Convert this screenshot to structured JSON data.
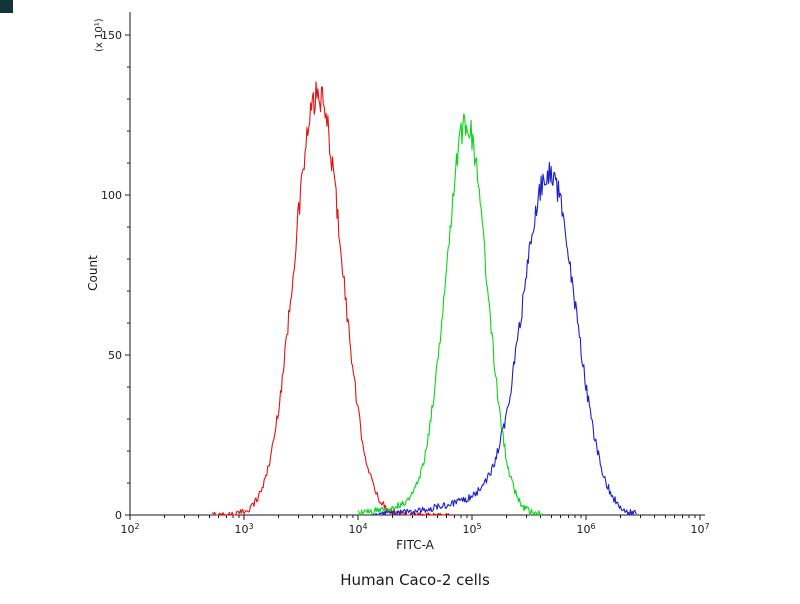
{
  "figure": {
    "background_color": "#ffffff",
    "corner_mark_color": "#14343c"
  },
  "chart_data": {
    "type": "line",
    "chart_kind": "flow-cytometry-histogram",
    "title": "Human Caco-2 cells",
    "xlabel": "FITC-A",
    "ylabel": "Count",
    "y_multiplier_label": "(x 10¹)",
    "x_scale": "log10",
    "x_tick_exponents": [
      2,
      3,
      4,
      5,
      6,
      7
    ],
    "y_ticks": [
      0,
      50,
      100,
      150
    ],
    "ylim": [
      0,
      155
    ],
    "xlim_log10": [
      2,
      7
    ],
    "grid": false,
    "legend": "none",
    "series": [
      {
        "name": "red-peak",
        "color": "#e31313",
        "peak_x": 4500,
        "peak_log10": 3.65,
        "peak_count": 131,
        "sigma_log10": 0.21,
        "range_log10": [
          2.72,
          4.8
        ],
        "components": [
          {
            "amp": 131,
            "mu": 3.65,
            "sigma": 0.21
          }
        ]
      },
      {
        "name": "green-peak",
        "color": "#0bd41b",
        "peak_x": 90000,
        "peak_log10": 4.95,
        "peak_count": 121,
        "sigma_log10": 0.18,
        "range_log10": [
          4.0,
          5.62
        ],
        "components": [
          {
            "amp": 121,
            "mu": 4.95,
            "sigma": 0.18
          },
          {
            "amp": 3,
            "mu": 4.55,
            "sigma": 0.3
          }
        ]
      },
      {
        "name": "blue-peak",
        "color": "#1a20cc",
        "peak_x": 480000,
        "peak_log10": 5.68,
        "peak_count": 105,
        "sigma_log10": 0.23,
        "range_log10": [
          4.15,
          6.45
        ],
        "components": [
          {
            "amp": 105,
            "mu": 5.68,
            "sigma": 0.23
          },
          {
            "amp": 5,
            "mu": 5.15,
            "sigma": 0.38
          }
        ]
      }
    ]
  }
}
